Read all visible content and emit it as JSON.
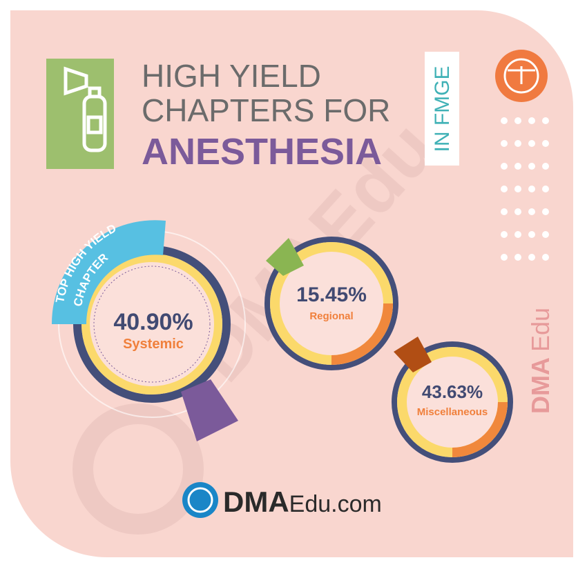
{
  "header": {
    "title_line1": "HIGH YIELD",
    "title_line2": "CHAPTERS FOR",
    "subject": "ANESTHESIA",
    "tag": "IN FMGE"
  },
  "badge": {
    "line1": "TOP HIGH YIELD",
    "line2": "CHAPTER"
  },
  "segments": [
    {
      "value": "40.90%",
      "label": "Systemic"
    },
    {
      "value": "15.45%",
      "label": "Regional"
    },
    {
      "value": "43.63%",
      "label": "Miscellaneous"
    }
  ],
  "side_brand": {
    "bold": "DMA",
    "light": "Edu"
  },
  "footer": {
    "bold": "DMA",
    "light": "Edu.com"
  }
}
